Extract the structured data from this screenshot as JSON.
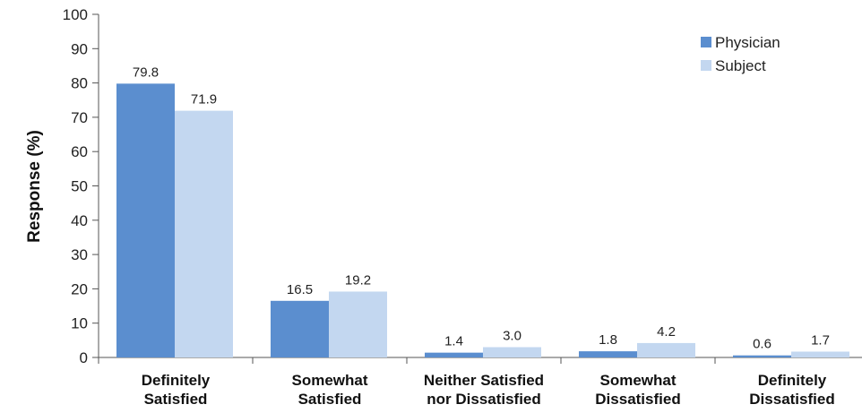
{
  "chart_data": {
    "type": "bar",
    "title": "",
    "xlabel": "",
    "ylabel": "Response (%)",
    "ylim": [
      0,
      100
    ],
    "yticks": [
      0,
      10,
      20,
      30,
      40,
      50,
      60,
      70,
      80,
      90,
      100
    ],
    "grid": false,
    "legend_position": "top-right",
    "categories": [
      [
        "Definitely",
        "Satisfied"
      ],
      [
        "Somewhat",
        "Satisfied"
      ],
      [
        "Neither Satisfied",
        "nor Dissatisfied"
      ],
      [
        "Somewhat",
        "Dissatisfied"
      ],
      [
        "Definitely",
        "Dissatisfied"
      ]
    ],
    "series": [
      {
        "name": "Physician",
        "color": "#5B8ECF",
        "values": [
          79.8,
          16.5,
          1.4,
          1.8,
          0.6
        ],
        "labels": [
          "79.8",
          "16.5",
          "1.4",
          "1.8",
          "0.6"
        ]
      },
      {
        "name": "Subject",
        "color": "#C3D7F0",
        "values": [
          71.9,
          19.2,
          3.0,
          4.2,
          1.7
        ],
        "labels": [
          "71.9",
          "19.2",
          "3.0",
          "4.2",
          "1.7"
        ]
      }
    ]
  }
}
